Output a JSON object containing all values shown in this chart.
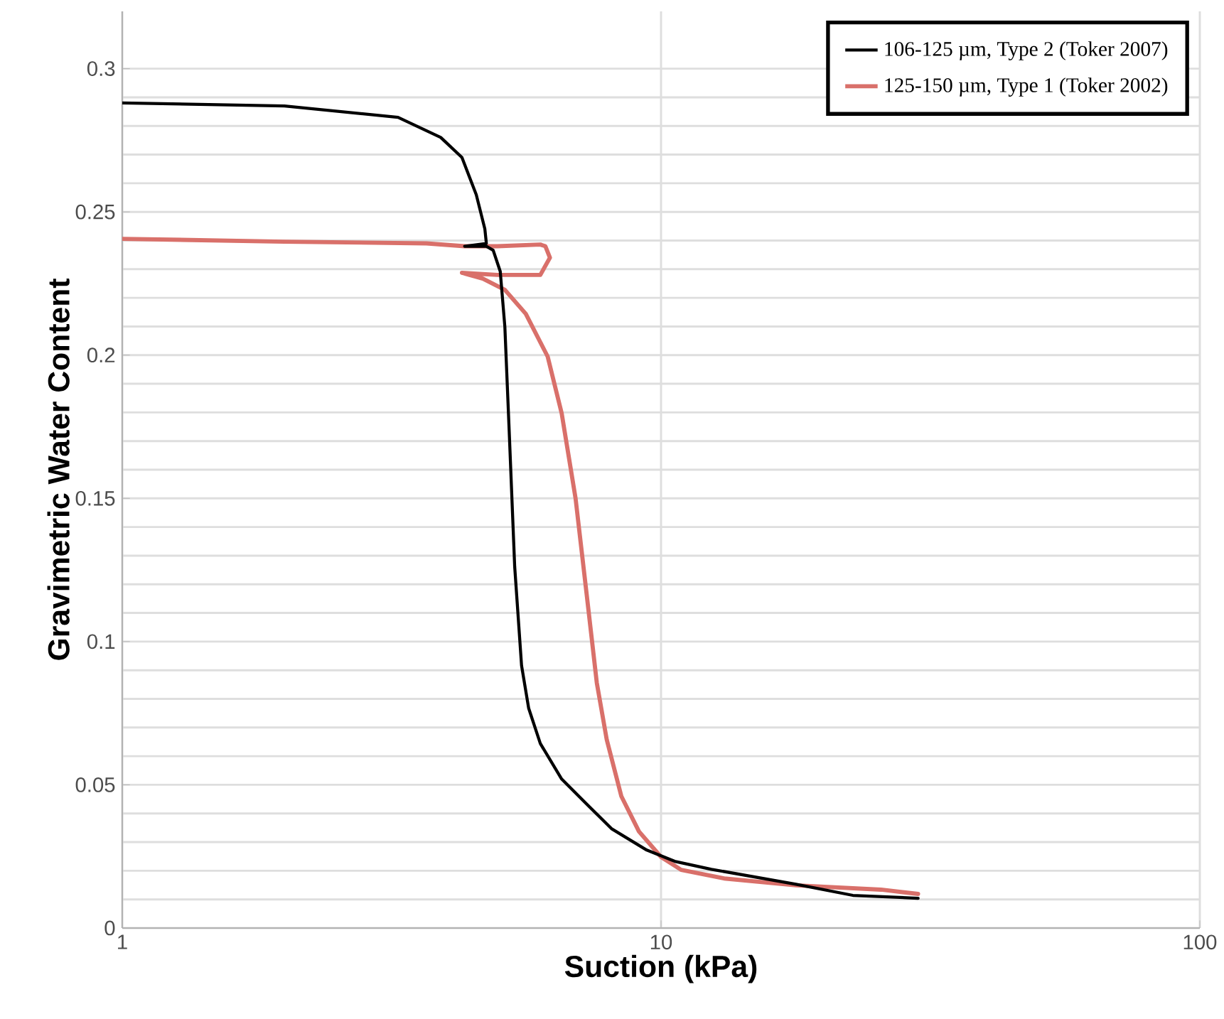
{
  "chart_data": {
    "type": "line",
    "xlabel": "Suction (kPa)",
    "ylabel": "Gravimetric Water Content",
    "log": "x",
    "grid": true,
    "legend": "top right",
    "xlim": [
      1,
      100
    ],
    "xticks": [
      1,
      10,
      100
    ],
    "ylim": [
      0,
      0.32
    ],
    "yticks": [
      0,
      0.05,
      0.1,
      0.15,
      0.2,
      0.25,
      0.3
    ],
    "series": [
      {
        "name": "106-125 µm, Type 2 (Toker 2007)",
        "color": "#000000",
        "x": [
          1,
          2.0,
          3.25,
          3.9,
          4.27,
          4.54,
          4.71,
          4.74,
          4.32,
          4.74,
          4.88,
          5.03,
          5.13,
          5.22,
          5.35,
          5.51,
          5.68,
          5.97,
          6.54,
          7.25,
          8.09,
          9.41,
          10.6,
          12.4,
          17.8,
          22.7,
          30
        ],
        "values": [
          0.288,
          0.287,
          0.283,
          0.276,
          0.269,
          0.256,
          0.244,
          0.239,
          0.238,
          0.238,
          0.2366,
          0.2292,
          0.2099,
          0.1757,
          0.1262,
          0.0916,
          0.0767,
          0.0644,
          0.052,
          0.0436,
          0.0347,
          0.0272,
          0.0233,
          0.0205,
          0.0153,
          0.0114,
          0.0104
        ]
      },
      {
        "name": "125-150 µm, Type 1 (Toker 2002)",
        "color": "#d9706a",
        "x": [
          1,
          2.0,
          3.67,
          4.32,
          4.97,
          5.97,
          6.1,
          6.22,
          5.97,
          4.97,
          4.27,
          4.67,
          5.13,
          5.61,
          6.16,
          6.54,
          6.94,
          7.29,
          7.6,
          7.93,
          8.44,
          9.1,
          10.0,
          10.9,
          13.1,
          17.8,
          25.6,
          30
        ],
        "values": [
          0.2406,
          0.2396,
          0.239,
          0.238,
          0.238,
          0.2386,
          0.238,
          0.234,
          0.228,
          0.228,
          0.2287,
          0.2267,
          0.2228,
          0.2144,
          0.1995,
          0.1797,
          0.15,
          0.1153,
          0.0856,
          0.0658,
          0.046,
          0.0337,
          0.0248,
          0.0203,
          0.0173,
          0.0149,
          0.0134,
          0.0119
        ]
      }
    ]
  }
}
